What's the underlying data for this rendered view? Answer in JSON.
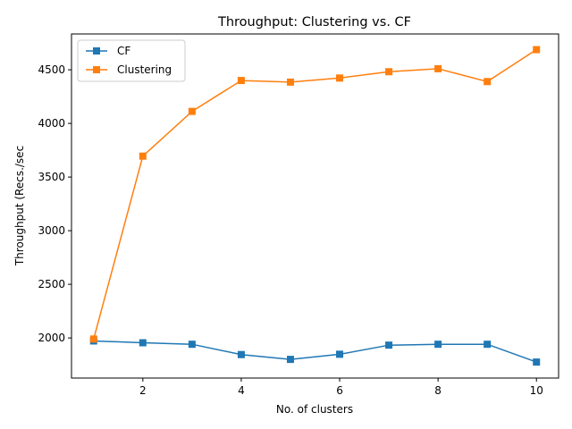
{
  "chart_data": {
    "type": "line",
    "title": "Throughput: Clustering vs. CF",
    "xlabel": "No. of clusters",
    "ylabel": "Throughput (Recs./sec",
    "xlim": [
      0.55,
      10.45
    ],
    "ylim": [
      1626,
      4834
    ],
    "xticks": [
      2,
      4,
      6,
      8,
      10
    ],
    "yticks": [
      2000,
      2500,
      3000,
      3500,
      4000,
      4500
    ],
    "grid": false,
    "legend_position": "top-left",
    "x": [
      1,
      2,
      3,
      4,
      5,
      6,
      7,
      8,
      9,
      10
    ],
    "series": [
      {
        "name": "CF",
        "color": "#1f77b4",
        "marker": "square",
        "values": [
          1972,
          1955,
          1941,
          1845,
          1800,
          1848,
          1933,
          1941,
          1941,
          1775
        ]
      },
      {
        "name": "Clustering",
        "color": "#ff7f0e",
        "marker": "square",
        "values": [
          1990,
          3695,
          4112,
          4400,
          4385,
          4423,
          4482,
          4510,
          4390,
          4688
        ]
      }
    ]
  }
}
